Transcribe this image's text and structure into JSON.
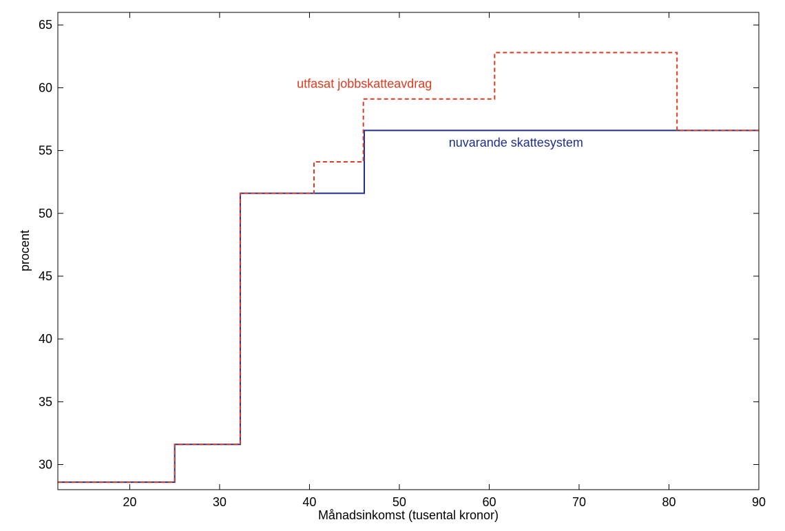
{
  "chart_data": {
    "type": "line",
    "xlabel": "Månadsinkomst (tusental kronor)",
    "ylabel": "procent",
    "xlim": [
      12,
      90
    ],
    "ylim": [
      28,
      66
    ],
    "xticks": [
      20,
      30,
      40,
      50,
      60,
      70,
      80,
      90
    ],
    "yticks": [
      30,
      35,
      40,
      45,
      50,
      55,
      60,
      65
    ],
    "grid": false,
    "series": [
      {
        "name": "nuvarande skattesystem",
        "color": "#1f2f8f",
        "style": "solid",
        "step_points": [
          [
            12,
            28.6
          ],
          [
            25.0,
            28.6
          ],
          [
            25.0,
            31.6
          ],
          [
            32.3,
            31.6
          ],
          [
            32.3,
            51.6
          ],
          [
            46.1,
            51.6
          ],
          [
            46.1,
            56.6
          ],
          [
            90,
            56.6
          ]
        ]
      },
      {
        "name": "utfasat jobbskatteavdrag",
        "color": "#e03a1e",
        "style": "dashed",
        "step_points": [
          [
            12,
            28.6
          ],
          [
            25.0,
            28.6
          ],
          [
            25.0,
            31.6
          ],
          [
            32.3,
            31.6
          ],
          [
            32.3,
            51.6
          ],
          [
            40.5,
            51.6
          ],
          [
            40.5,
            54.1
          ],
          [
            46.0,
            54.1
          ],
          [
            46.0,
            59.1
          ],
          [
            60.6,
            59.1
          ],
          [
            60.6,
            62.8
          ],
          [
            80.9,
            62.8
          ],
          [
            80.9,
            56.6
          ],
          [
            90,
            56.6
          ]
        ]
      }
    ],
    "annotations": [
      {
        "text": "utfasat jobbskatteavdrag",
        "x": 38.6,
        "y": 60.0,
        "color": "#e03a1e"
      },
      {
        "text": "nuvarande skattesystem",
        "x": 55.5,
        "y": 55.3,
        "color": "#1f2f8f"
      }
    ]
  }
}
